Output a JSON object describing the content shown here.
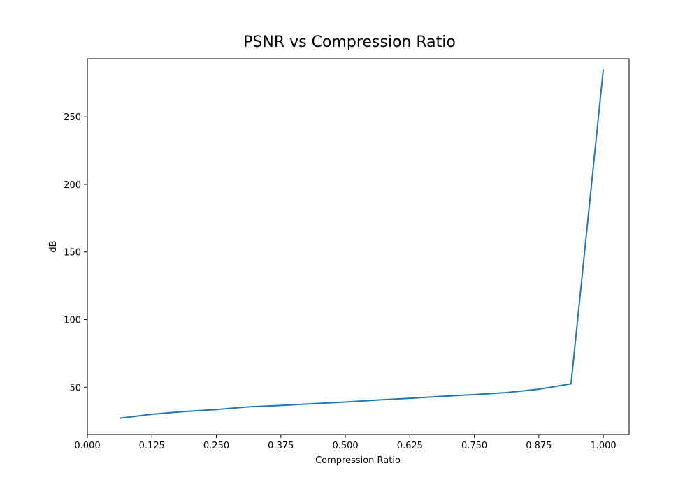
{
  "chart_data": {
    "type": "line",
    "title": "PSNR vs Compression Ratio",
    "xlabel": "Compression Ratio",
    "ylabel": "dB",
    "xlim": [
      0.0,
      1.05
    ],
    "ylim": [
      15,
      293
    ],
    "xticks": [
      0.0,
      0.125,
      0.25,
      0.375,
      0.5,
      0.625,
      0.75,
      0.875,
      1.0
    ],
    "xtick_labels": [
      "0.000",
      "0.125",
      "0.250",
      "0.375",
      "0.500",
      "0.625",
      "0.750",
      "0.875",
      "1.000"
    ],
    "yticks": [
      50,
      100,
      150,
      200,
      250
    ],
    "ytick_labels": [
      "50",
      "100",
      "150",
      "200",
      "250"
    ],
    "grid": false,
    "legend": "none",
    "series": [
      {
        "color": "#1f77b4",
        "x": [
          0.0625,
          0.125,
          0.1875,
          0.25,
          0.3125,
          0.375,
          0.4375,
          0.5,
          0.5625,
          0.625,
          0.6875,
          0.75,
          0.8125,
          0.875,
          0.9375,
          1.0
        ],
        "y": [
          27.0,
          30.0,
          32.0,
          33.5,
          35.5,
          36.5,
          37.8,
          39.0,
          40.5,
          41.8,
          43.2,
          44.5,
          46.0,
          48.5,
          52.5,
          285.0
        ]
      }
    ]
  }
}
